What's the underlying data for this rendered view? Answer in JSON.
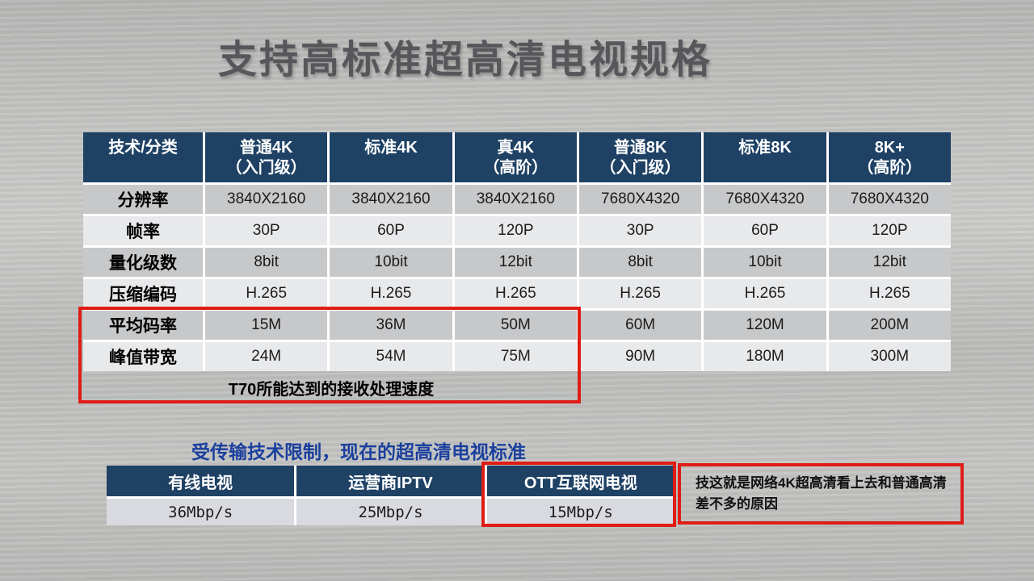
{
  "title": "支持高标准超高清电视规格",
  "main_table": {
    "headers": [
      {
        "line1": "技术/分类",
        "line2": ""
      },
      {
        "line1": "普通4K",
        "line2": "（入门级）"
      },
      {
        "line1": "标准4K",
        "line2": ""
      },
      {
        "line1": "真4K",
        "line2": "（高阶）"
      },
      {
        "line1": "普通8K",
        "line2": "（入门级）"
      },
      {
        "line1": "标准8K",
        "line2": ""
      },
      {
        "line1": "8K+",
        "line2": "（高阶）"
      }
    ],
    "rows": [
      {
        "label": "分辨率",
        "values": [
          "3840X2160",
          "3840X2160",
          "3840X2160",
          "7680X4320",
          "7680X4320",
          "7680X4320"
        ]
      },
      {
        "label": "帧率",
        "values": [
          "30P",
          "60P",
          "120P",
          "30P",
          "60P",
          "120P"
        ]
      },
      {
        "label": "量化级数",
        "values": [
          "8bit",
          "10bit",
          "12bit",
          "8bit",
          "10bit",
          "12bit"
        ]
      },
      {
        "label": "压缩编码",
        "values": [
          "H.265",
          "H.265",
          "H.265",
          "H.265",
          "H.265",
          "H.265"
        ]
      },
      {
        "label": "平均码率",
        "values": [
          "15M",
          "36M",
          "50M",
          "60M",
          "120M",
          "200M"
        ]
      },
      {
        "label": "峰值带宽",
        "values": [
          "24M",
          "54M",
          "75M",
          "90M",
          "180M",
          "300M"
        ]
      }
    ],
    "footer_note": "T70所能达到的接收处理速度"
  },
  "subtitle": "受传输技术限制，现在的超高清电视标准",
  "bandwidth_table": {
    "headers": [
      "有线电视",
      "运营商IPTV",
      "OTT互联网电视"
    ],
    "values": [
      "36Mbp/s",
      "25Mbp/s",
      "15Mbp/s"
    ]
  },
  "annotation": "技这就是网络4K超高清看上去和普通高清差不多的原因",
  "colors": {
    "header_navy": "#1e4164",
    "highlight_red": "#df1c15",
    "subtitle_blue": "#1b3f9d"
  }
}
